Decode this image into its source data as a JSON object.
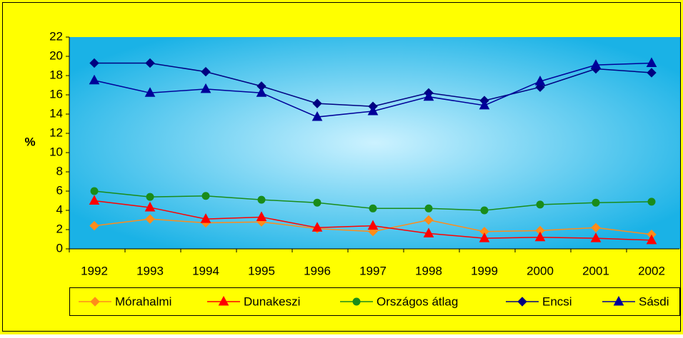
{
  "chart_data": {
    "type": "line",
    "ylabel": "%",
    "categories": [
      "1992",
      "1993",
      "1994",
      "1995",
      "1996",
      "1997",
      "1998",
      "1999",
      "2000",
      "2001",
      "2002"
    ],
    "series": [
      {
        "name": "Mórahalmi",
        "color": "#ff8c1a",
        "marker": "diamond",
        "values": [
          2.4,
          3.1,
          2.7,
          2.8,
          2.1,
          1.8,
          3.0,
          1.8,
          1.9,
          2.2,
          1.5
        ]
      },
      {
        "name": "Dunakeszi",
        "color": "#ff0000",
        "marker": "triangle",
        "values": [
          5.0,
          4.3,
          3.1,
          3.3,
          2.2,
          2.4,
          1.6,
          1.1,
          1.2,
          1.1,
          0.9
        ]
      },
      {
        "name": "Országos átlag",
        "color": "#1a8c1a",
        "marker": "circle",
        "values": [
          6.0,
          5.4,
          5.5,
          5.1,
          4.8,
          4.2,
          4.2,
          4.0,
          4.6,
          4.8,
          4.9
        ]
      },
      {
        "name": "Encsi",
        "color": "#000080",
        "marker": "diamond",
        "values": [
          19.3,
          19.3,
          18.4,
          16.9,
          15.1,
          14.8,
          16.2,
          15.4,
          16.8,
          18.7,
          18.3
        ]
      },
      {
        "name": "Sásdi",
        "color": "#000099",
        "marker": "triangle",
        "values": [
          17.5,
          16.2,
          16.6,
          16.2,
          13.7,
          14.3,
          15.8,
          14.9,
          17.4,
          19.1,
          19.3
        ]
      }
    ],
    "ylim": [
      0,
      22
    ],
    "yticks": [
      0,
      2,
      4,
      6,
      8,
      10,
      12,
      14,
      16,
      18,
      20,
      22
    ],
    "legend": "bottom"
  }
}
